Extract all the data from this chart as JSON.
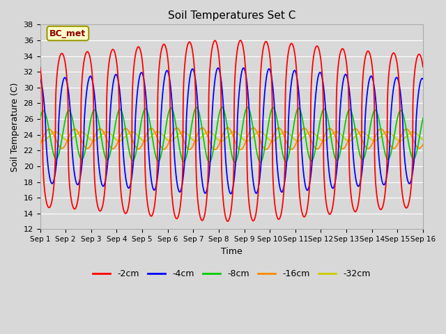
{
  "title": "Soil Temperatures Set C",
  "xlabel": "Time",
  "ylabel": "Soil Temperature (C)",
  "xlim": [
    0,
    15
  ],
  "ylim": [
    12,
    38
  ],
  "yticks": [
    12,
    14,
    16,
    18,
    20,
    22,
    24,
    26,
    28,
    30,
    32,
    34,
    36,
    38
  ],
  "xtick_positions": [
    0,
    1,
    2,
    3,
    4,
    5,
    6,
    7,
    8,
    9,
    10,
    11,
    12,
    13,
    14,
    15
  ],
  "xtick_labels": [
    "Sep 1",
    "Sep 2",
    "Sep 3",
    "Sep 4",
    "Sep 5",
    "Sep 6",
    "Sep 7",
    "Sep 8",
    "Sep 9",
    "Sep 10",
    "Sep 11",
    "Sep 12",
    "Sep 13",
    "Sep 14",
    "Sep 15",
    "Sep 16"
  ],
  "annotation": "BC_met",
  "background_color": "#d8d8d8",
  "plot_bg_color": "#d8d8d8",
  "grid_color": "#ffffff",
  "legend_colors": {
    "-2cm": "#ff0000",
    "-4cm": "#0000ff",
    "-8cm": "#00cc00",
    "-16cm": "#ff8800",
    "-32cm": "#cccc00"
  },
  "series": {
    "-2cm": {
      "color": "#ff0000",
      "mean": 24.5,
      "amp": 9.5,
      "phase": 0.6,
      "sharpness": 3.0,
      "amp_var": 2.0,
      "amp_var_period": 8.0
    },
    "-4cm": {
      "color": "#0000ff",
      "mean": 24.5,
      "amp": 6.5,
      "phase": 0.72,
      "sharpness": 1.5,
      "amp_var": 1.5,
      "amp_var_period": 8.0
    },
    "-8cm": {
      "color": "#00cc00",
      "mean": 24.0,
      "amp": 3.0,
      "phase": 0.88,
      "sharpness": 1.0,
      "amp_var": 0.5,
      "amp_var_period": 8.0
    },
    "-16cm": {
      "color": "#ff8800",
      "mean": 23.5,
      "amp": 1.2,
      "phase": 1.1,
      "sharpness": 1.0,
      "amp_var": 0.2,
      "amp_var_period": 8.0
    },
    "-32cm": {
      "color": "#cccc00",
      "mean": 23.8,
      "amp": 0.55,
      "phase": 1.35,
      "sharpness": 1.0,
      "amp_var": 0.05,
      "amp_var_period": 8.0
    }
  }
}
